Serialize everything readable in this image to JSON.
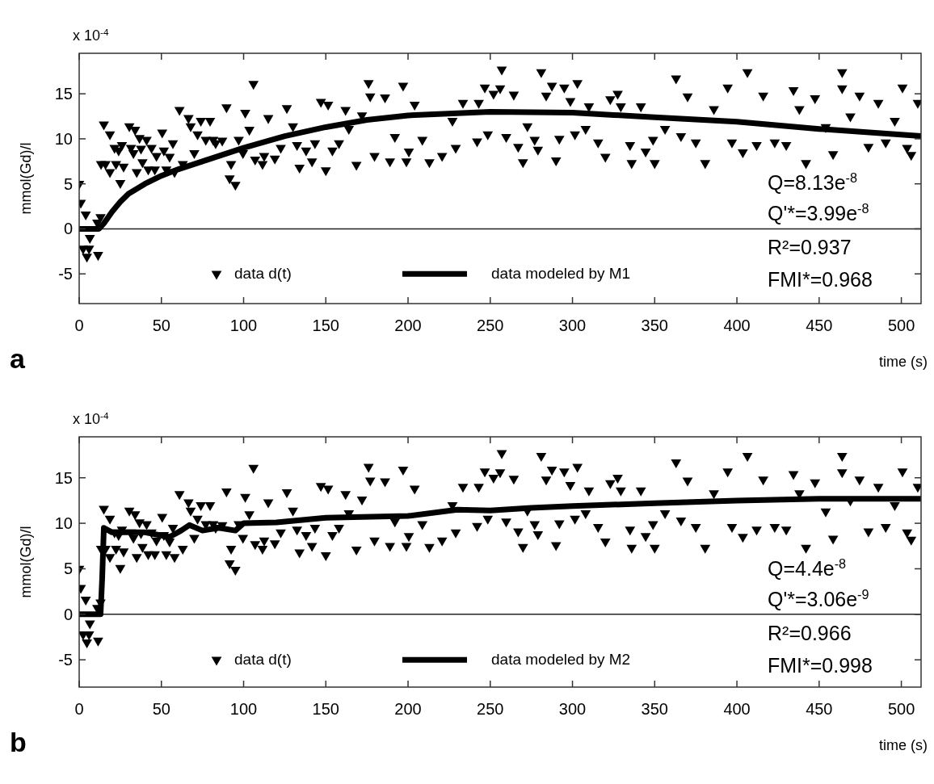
{
  "chart_data": [
    {
      "type": "scatter",
      "xlabel": "time (s)",
      "ylabel": "mmol(Gd)/l",
      "xlim": [
        0,
        512
      ],
      "ylim": [
        -8.3,
        19.5
      ],
      "xticks": [
        0,
        50,
        100,
        150,
        200,
        250,
        300,
        350,
        400,
        450,
        500
      ],
      "yticks": [
        -5,
        0,
        5,
        10,
        15
      ],
      "legend": "bottom",
      "ref_lines": [
        {
          "axis": "y",
          "value": 0
        }
      ],
      "annotations": [
        "x 10$^{-4}$",
        "a",
        "Q=8.13e$^{-8}$",
        "Q'*=3.99e$^{-8}$",
        "R²=0.937",
        "FMI*=0.968"
      ],
      "series": [
        {
          "name": "data d(t)",
          "marker": "triangle",
          "color": "#000000",
          "x": [
            0,
            1,
            2.4,
            4,
            4.7,
            6,
            6.5,
            11,
            11.5,
            13,
            13.3,
            15,
            16,
            18.7,
            18.7,
            21.5,
            22.4,
            24,
            25,
            26,
            27,
            30.5,
            31.5,
            33,
            34,
            35,
            36.7,
            37.6,
            38.5,
            41,
            42,
            44,
            46,
            47,
            50.5,
            51.5,
            53,
            55,
            57,
            58,
            61,
            63,
            66.5,
            67.8,
            70,
            72,
            74,
            77,
            79.6,
            81.5,
            83,
            87,
            89.6,
            91.5,
            92.4,
            95,
            97,
            99.6,
            101,
            103.5,
            106,
            107,
            111.5,
            112.5,
            115,
            119,
            122.6,
            126.3,
            130,
            132.5,
            134,
            138,
            141.6,
            143.4,
            147,
            150,
            151.4,
            154,
            158,
            162,
            164,
            168.6,
            172,
            176,
            177,
            179.6,
            186,
            189,
            192,
            197,
            199,
            200.5,
            204,
            208.7,
            213,
            220.7,
            227,
            229,
            233.4,
            242,
            243,
            246.7,
            248.5,
            252,
            256,
            257,
            259.7,
            264.3,
            267,
            269.9,
            272.6,
            277,
            279,
            281,
            284,
            287.5,
            290,
            292,
            295,
            298.7,
            301.5,
            303,
            308,
            310,
            315.6,
            320,
            323,
            327.5,
            329.4,
            335,
            336,
            341.6,
            344.5,
            349,
            350,
            356.3,
            363,
            366,
            370,
            375,
            380.7,
            386,
            394.4,
            397,
            403.6,
            406.4,
            412,
            416,
            423,
            430,
            434.4,
            438,
            442,
            447.5,
            454,
            458.5,
            464,
            464,
            469,
            474.6,
            480,
            486,
            490.5,
            496,
            500.7,
            503.5,
            506,
            510
          ],
          "values": [
            5.0,
            2.9,
            -2.2,
            1.6,
            -3.1,
            -2.2,
            -1.0,
            0.7,
            -2.9,
            1.3,
            7.2,
            11.6,
            7.2,
            10.5,
            6.3,
            9.0,
            7.2,
            8.7,
            5.1,
            9.3,
            6.9,
            11.4,
            9.0,
            8.4,
            11.0,
            6.3,
            10.1,
            8.9,
            7.4,
            9.9,
            6.6,
            9.0,
            6.6,
            8.1,
            10.7,
            8.7,
            6.6,
            8.0,
            9.5,
            6.3,
            13.2,
            7.2,
            12.3,
            11.4,
            8.4,
            10.5,
            12.0,
            9.9,
            12.0,
            9.9,
            9.5,
            9.8,
            13.5,
            5.6,
            7.2,
            4.9,
            9.9,
            8.4,
            12.9,
            11.0,
            16.1,
            7.7,
            7.2,
            8.1,
            12.3,
            7.8,
            9.0,
            13.4,
            11.4,
            9.3,
            6.8,
            8.7,
            7.5,
            9.5,
            14.1,
            6.5,
            13.8,
            8.7,
            9.5,
            13.2,
            11.1,
            7.1,
            12.6,
            16.2,
            14.7,
            8.1,
            14.6,
            7.5,
            10.2,
            15.9,
            7.5,
            8.6,
            13.8,
            9.9,
            7.4,
            8.1,
            12.0,
            9.0,
            14.0,
            9.7,
            14.0,
            15.7,
            10.5,
            15.0,
            15.6,
            17.7,
            10.2,
            14.9,
            9.1,
            7.4,
            11.4,
            9.9,
            8.8,
            17.4,
            14.8,
            15.9,
            7.6,
            10.0,
            15.7,
            14.2,
            10.5,
            16.2,
            11.1,
            13.6,
            9.6,
            8.0,
            14.4,
            15.0,
            13.6,
            9.3,
            7.3,
            13.6,
            8.6,
            9.9,
            7.3,
            11.1,
            16.7,
            10.3,
            14.7,
            9.6,
            7.3,
            13.3,
            15.7,
            9.6,
            8.5,
            17.4,
            9.3,
            14.8,
            9.6,
            9.3,
            15.4,
            13.3,
            7.3,
            14.5,
            11.3,
            8.3,
            17.4,
            15.6,
            12.5,
            14.8,
            9.1,
            14.0,
            9.6,
            12.0,
            15.7,
            9.0,
            8.2,
            14.0
          ]
        },
        {
          "name": "data modeled by M1",
          "type": "line",
          "color": "#000000",
          "x": [
            0,
            12,
            15,
            20,
            25,
            30,
            40,
            50,
            60,
            75,
            100,
            125,
            150,
            175,
            200,
            250,
            300,
            350,
            400,
            450,
            512
          ],
          "values": [
            0,
            0,
            0.6,
            1.9,
            3.0,
            3.9,
            5.0,
            5.9,
            6.6,
            7.5,
            9.0,
            10.3,
            11.3,
            12.1,
            12.6,
            13.0,
            12.9,
            12.4,
            11.9,
            11.1,
            10.3
          ]
        }
      ]
    },
    {
      "type": "scatter",
      "xlabel": "time (s)",
      "ylabel": "mmol(Gd)/l",
      "xlim": [
        0,
        512
      ],
      "ylim": [
        -8,
        19.5
      ],
      "xticks": [
        0,
        50,
        100,
        150,
        200,
        250,
        300,
        350,
        400,
        450,
        500
      ],
      "yticks": [
        -5,
        0,
        5,
        10,
        15
      ],
      "legend": "bottom",
      "ref_lines": [
        {
          "axis": "y",
          "value": 0
        }
      ],
      "annotations": [
        "x 10$^{-4}$",
        "b",
        "Q=4.4e$^{-8}$",
        "Q'*=3.06e$^{-9}$",
        "R²=0.966",
        "FMI*=0.998"
      ],
      "series": [
        {
          "name": "data d(t)",
          "marker": "triangle",
          "color": "#000000",
          "x": [
            0,
            1,
            2.4,
            4,
            4.7,
            6,
            6.5,
            11,
            11.5,
            13,
            13.3,
            15,
            16,
            18.7,
            18.7,
            21.5,
            22.4,
            24,
            25,
            26,
            27,
            30.5,
            31.5,
            33,
            34,
            35,
            36.7,
            37.6,
            38.5,
            41,
            42,
            44,
            46,
            47,
            50.5,
            51.5,
            53,
            55,
            57,
            58,
            61,
            63,
            66.5,
            67.8,
            70,
            72,
            74,
            77,
            79.6,
            81.5,
            83,
            87,
            89.6,
            91.5,
            92.4,
            95,
            97,
            99.6,
            101,
            103.5,
            106,
            107,
            111.5,
            112.5,
            115,
            119,
            122.6,
            126.3,
            130,
            132.5,
            134,
            138,
            141.6,
            143.4,
            147,
            150,
            151.4,
            154,
            158,
            162,
            164,
            168.6,
            172,
            176,
            177,
            179.6,
            186,
            189,
            192,
            197,
            199,
            200.5,
            204,
            208.7,
            213,
            220.7,
            227,
            229,
            233.4,
            242,
            243,
            246.7,
            248.5,
            252,
            256,
            257,
            259.7,
            264.3,
            267,
            269.9,
            272.6,
            277,
            279,
            281,
            284,
            287.5,
            290,
            292,
            295,
            298.7,
            301.5,
            303,
            308,
            310,
            315.6,
            320,
            323,
            327.5,
            329.4,
            335,
            336,
            341.6,
            344.5,
            349,
            350,
            356.3,
            363,
            366,
            370,
            375,
            380.7,
            386,
            394.4,
            397,
            403.6,
            406.4,
            412,
            416,
            423,
            430,
            434.4,
            438,
            442,
            447.5,
            454,
            458.5,
            464,
            464,
            469,
            474.6,
            480,
            486,
            490.5,
            496,
            500.7,
            503.5,
            506,
            510
          ],
          "values": [
            5.0,
            2.9,
            -2.2,
            1.6,
            -3.1,
            -2.2,
            -1.0,
            0.7,
            -2.9,
            1.3,
            7.2,
            11.6,
            7.2,
            10.5,
            6.3,
            9.0,
            7.2,
            8.7,
            5.1,
            9.3,
            6.9,
            11.4,
            9.0,
            8.4,
            11.0,
            6.3,
            10.1,
            8.9,
            7.4,
            9.9,
            6.6,
            9.0,
            6.6,
            8.1,
            10.7,
            8.7,
            6.6,
            8.0,
            9.5,
            6.3,
            13.2,
            7.2,
            12.3,
            11.4,
            8.4,
            10.5,
            12.0,
            9.9,
            12.0,
            9.9,
            9.5,
            9.8,
            13.5,
            5.6,
            7.2,
            4.9,
            9.9,
            8.4,
            12.9,
            11.0,
            16.1,
            7.7,
            7.2,
            8.1,
            12.3,
            7.8,
            9.0,
            13.4,
            11.4,
            9.3,
            6.8,
            8.7,
            7.5,
            9.5,
            14.1,
            6.5,
            13.8,
            8.7,
            9.5,
            13.2,
            11.1,
            7.1,
            12.6,
            16.2,
            14.7,
            8.1,
            14.6,
            7.5,
            10.2,
            15.9,
            7.5,
            8.6,
            13.8,
            9.9,
            7.4,
            8.1,
            12.0,
            9.0,
            14.0,
            9.7,
            14.0,
            15.7,
            10.5,
            15.0,
            15.6,
            17.7,
            10.2,
            14.9,
            9.1,
            7.4,
            11.4,
            9.9,
            8.8,
            17.4,
            14.8,
            15.9,
            7.6,
            10.0,
            15.7,
            14.2,
            10.5,
            16.2,
            11.1,
            13.6,
            9.6,
            8.0,
            14.4,
            15.0,
            13.6,
            9.3,
            7.3,
            13.6,
            8.6,
            9.9,
            7.3,
            11.1,
            16.7,
            10.3,
            14.7,
            9.6,
            7.3,
            13.3,
            15.7,
            9.6,
            8.5,
            17.4,
            9.3,
            14.8,
            9.6,
            9.3,
            15.4,
            13.3,
            7.3,
            14.5,
            11.3,
            8.3,
            17.4,
            15.6,
            12.5,
            14.8,
            9.1,
            14.0,
            9.6,
            12.0,
            15.7,
            9.0,
            8.2,
            14.0
          ]
        },
        {
          "name": "data modeled by M2",
          "type": "line",
          "color": "#000000",
          "x": [
            0,
            13,
            14,
            15,
            20,
            40,
            55,
            62,
            67,
            75,
            85,
            95,
            100,
            120,
            150,
            200,
            230,
            250,
            275,
            300,
            350,
            400,
            450,
            512
          ],
          "values": [
            0,
            0,
            4,
            9.5,
            9.0,
            9.0,
            8.5,
            9.2,
            9.8,
            9.2,
            9.5,
            9.2,
            10.0,
            10.1,
            10.6,
            10.8,
            11.5,
            11.4,
            11.7,
            11.9,
            12.2,
            12.5,
            12.7,
            12.7
          ]
        }
      ]
    }
  ]
}
